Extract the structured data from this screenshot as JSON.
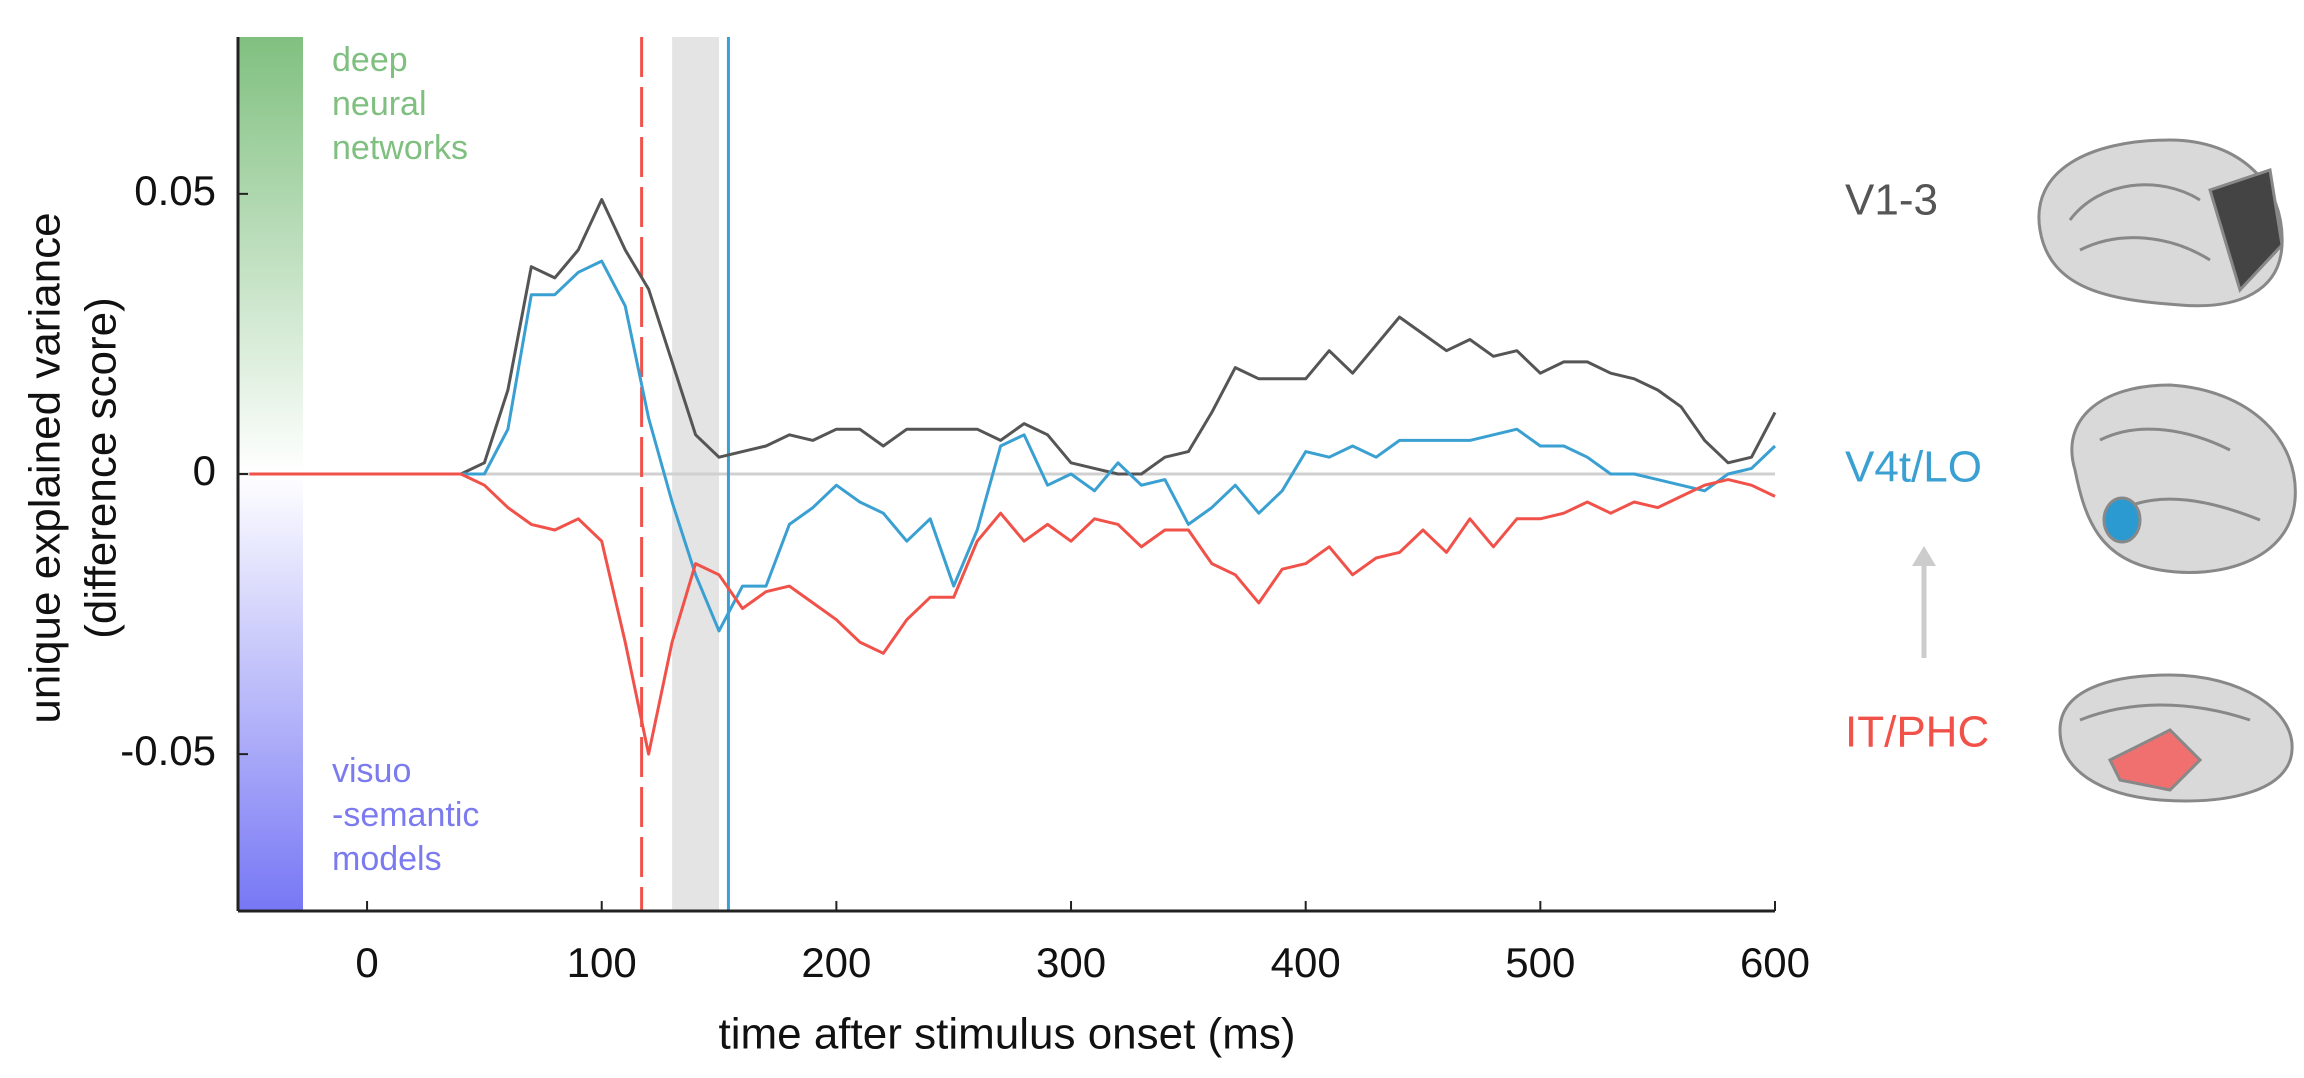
{
  "chart_data": {
    "type": "line",
    "xlabel": "time after stimulus onset (ms)",
    "ylabel": [
      "unique explained variance",
      "(difference score)"
    ],
    "xlim": [
      -55,
      600
    ],
    "ylim": [
      -0.078,
      0.078
    ],
    "xticks": [
      0,
      100,
      200,
      300,
      400,
      500,
      600
    ],
    "yticks": [
      -0.05,
      0,
      0.05
    ],
    "grid": false,
    "legend": "right",
    "x": [
      -50,
      -40,
      -30,
      -20,
      -10,
      0,
      10,
      20,
      30,
      40,
      50,
      60,
      70,
      80,
      90,
      100,
      110,
      120,
      130,
      140,
      150,
      160,
      170,
      180,
      190,
      200,
      210,
      220,
      230,
      240,
      250,
      260,
      270,
      280,
      290,
      300,
      310,
      320,
      330,
      340,
      350,
      360,
      370,
      380,
      390,
      400,
      410,
      420,
      430,
      440,
      450,
      460,
      470,
      480,
      490,
      500,
      510,
      520,
      530,
      540,
      550,
      560,
      570,
      580,
      590,
      600
    ],
    "series": [
      {
        "name": "V1-3",
        "color": "#555555",
        "values": [
          0,
          0,
          0,
          0,
          0,
          0,
          0,
          0,
          0,
          0,
          0.002,
          0.015,
          0.037,
          0.035,
          0.04,
          0.049,
          0.04,
          0.033,
          0.02,
          0.007,
          0.003,
          0.004,
          0.005,
          0.007,
          0.006,
          0.008,
          0.008,
          0.005,
          0.008,
          0.008,
          0.008,
          0.008,
          0.006,
          0.009,
          0.007,
          0.002,
          0.001,
          0,
          0,
          0.003,
          0.004,
          0.011,
          0.019,
          0.017,
          0.017,
          0.017,
          0.022,
          0.018,
          0.023,
          0.028,
          0.025,
          0.022,
          0.024,
          0.021,
          0.022,
          0.018,
          0.02,
          0.02,
          0.018,
          0.017,
          0.015,
          0.012,
          0.006,
          0.002,
          0.003,
          0.011
        ]
      },
      {
        "name": "V4t/LO",
        "color": "#3aa0d2",
        "values": [
          0,
          0,
          0,
          0,
          0,
          0,
          0,
          0,
          0,
          0,
          0,
          0.008,
          0.032,
          0.032,
          0.036,
          0.038,
          0.03,
          0.01,
          -0.005,
          -0.018,
          -0.028,
          -0.02,
          -0.02,
          -0.009,
          -0.006,
          -0.002,
          -0.005,
          -0.007,
          -0.012,
          -0.008,
          -0.02,
          -0.01,
          0.005,
          0.007,
          -0.002,
          0,
          -0.003,
          0.002,
          -0.002,
          -0.001,
          -0.009,
          -0.006,
          -0.002,
          -0.007,
          -0.003,
          0.004,
          0.003,
          0.005,
          0.003,
          0.006,
          0.006,
          0.006,
          0.006,
          0.007,
          0.008,
          0.005,
          0.005,
          0.003,
          0,
          0,
          -0.001,
          -0.002,
          -0.003,
          0,
          0.001,
          0.005
        ]
      },
      {
        "name": "IT/PHC",
        "color": "#f0524a",
        "values": [
          0,
          0,
          0,
          0,
          0,
          0,
          0,
          0,
          0,
          0,
          -0.002,
          -0.006,
          -0.009,
          -0.01,
          -0.008,
          -0.012,
          -0.03,
          -0.05,
          -0.03,
          -0.016,
          -0.018,
          -0.024,
          -0.021,
          -0.02,
          -0.023,
          -0.026,
          -0.03,
          -0.032,
          -0.026,
          -0.022,
          -0.022,
          -0.012,
          -0.007,
          -0.012,
          -0.009,
          -0.012,
          -0.008,
          -0.009,
          -0.013,
          -0.01,
          -0.01,
          -0.016,
          -0.018,
          -0.023,
          -0.017,
          -0.016,
          -0.013,
          -0.018,
          -0.015,
          -0.014,
          -0.01,
          -0.014,
          -0.008,
          -0.013,
          -0.008,
          -0.008,
          -0.007,
          -0.005,
          -0.007,
          -0.005,
          -0.006,
          -0.004,
          -0.002,
          -0.001,
          -0.002,
          -0.004
        ]
      }
    ],
    "vlines": [
      {
        "x": 117,
        "color": "#f0524a",
        "dash": true
      },
      {
        "x": 154,
        "color": "#3aa0d2",
        "dash": false
      }
    ],
    "shaded_interval": [
      130,
      150
    ],
    "annotations": [
      {
        "lines": [
          "deep",
          "neural",
          "networks"
        ],
        "color": "#7fbf7f"
      },
      {
        "lines": [
          "visuo",
          "-semantic",
          "models"
        ],
        "color": "#7b7bef"
      }
    ]
  }
}
